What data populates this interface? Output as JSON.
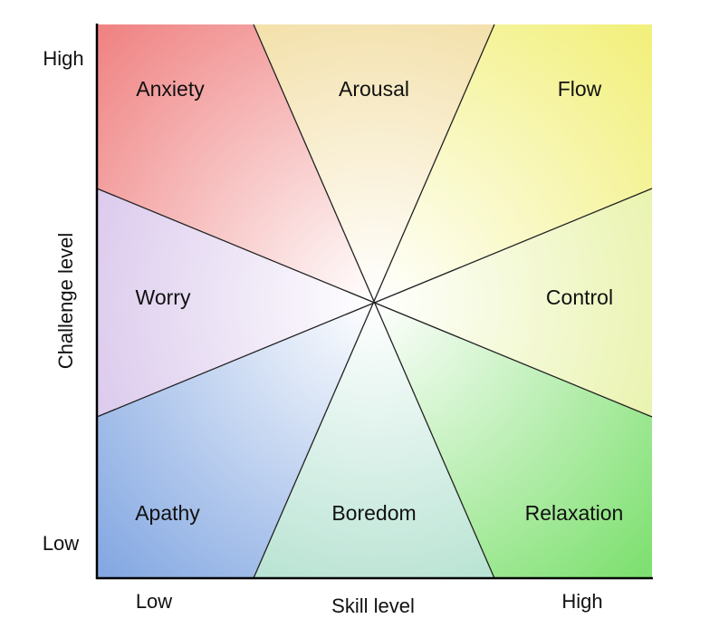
{
  "y_axis": {
    "title": "Challenge level",
    "high": "High",
    "low": "Low"
  },
  "x_axis": {
    "title": "Skill level",
    "low": "Low",
    "high": "High"
  },
  "regions": [
    {
      "label": "Anxiety",
      "color": "#f08484"
    },
    {
      "label": "Arousal",
      "color": "#f0d894"
    },
    {
      "label": "Flow",
      "color": "#f2f07c"
    },
    {
      "label": "Control",
      "color": "#e4f09a"
    },
    {
      "label": "Relaxation",
      "color": "#7ee070"
    },
    {
      "label": "Boredom",
      "color": "#a6dcc8"
    },
    {
      "label": "Apathy",
      "color": "#84a8e2"
    },
    {
      "label": "Worry",
      "color": "#d2bce8"
    }
  ]
}
